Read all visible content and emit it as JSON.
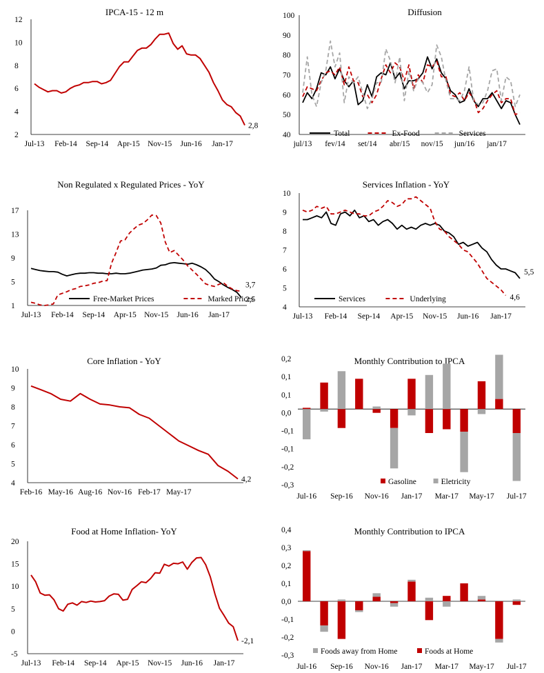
{
  "colors": {
    "red": "#C00000",
    "black": "#000000",
    "gray": "#A6A6A6"
  },
  "charts": [
    {
      "type": "line",
      "title": "IPCA-15 - 12 m",
      "ylim": [
        2,
        12
      ],
      "yticks": [
        "2",
        "4",
        "6",
        "8",
        "10",
        "12"
      ],
      "xticks": [
        "Jul-13",
        "Feb-14",
        "Sep-14",
        "Apr-15",
        "Nov-15",
        "Jun-16",
        "Jan-17"
      ],
      "end_label": "2,8",
      "series": [
        {
          "color": "#C00000",
          "dash": false,
          "values": [
            6.4,
            6.1,
            5.9,
            5.7,
            5.8,
            5.8,
            5.6,
            5.7,
            6.0,
            6.2,
            6.3,
            6.5,
            6.5,
            6.6,
            6.6,
            6.4,
            6.5,
            6.7,
            7.3,
            7.9,
            8.3,
            8.3,
            8.8,
            9.3,
            9.5,
            9.5,
            9.8,
            10.3,
            10.7,
            10.7,
            10.8,
            9.9,
            9.4,
            9.7,
            9.0,
            8.9,
            8.9,
            8.6,
            8.0,
            7.4,
            6.5,
            5.8,
            5.0,
            4.6,
            4.4,
            3.9,
            3.6,
            2.8
          ]
        }
      ]
    },
    {
      "type": "line",
      "title": "Diffusion",
      "ylim": [
        40,
        100
      ],
      "yticks": [
        "40",
        "50",
        "60",
        "70",
        "80",
        "90",
        "100"
      ],
      "xticks": [
        "jul/13",
        "fev/14",
        "set/14",
        "abr/15",
        "nov/15",
        "jun/16",
        "jan/17"
      ],
      "legend": [
        "Total",
        "Ex-Food",
        "Services"
      ],
      "series": [
        {
          "name": "Total",
          "color": "#000000",
          "dash": false,
          "values": [
            56,
            61,
            58,
            63,
            71,
            70,
            74,
            68,
            73,
            67,
            64,
            67,
            55,
            57,
            65,
            59,
            69,
            71,
            70,
            76,
            68,
            71,
            63,
            67,
            67,
            68,
            71,
            79,
            73,
            78,
            71,
            68,
            62,
            60,
            56,
            57,
            63,
            57,
            54,
            58,
            58,
            61,
            57,
            53,
            57,
            56,
            50,
            45
          ]
        },
        {
          "name": "Ex-Food",
          "color": "#C00000",
          "dash": true,
          "values": [
            59,
            64,
            63,
            62,
            67,
            71,
            72,
            70,
            74,
            65,
            74,
            67,
            66,
            59,
            60,
            56,
            60,
            68,
            75,
            71,
            76,
            74,
            67,
            75,
            63,
            70,
            66,
            75,
            74,
            77,
            69,
            69,
            60,
            59,
            61,
            57,
            61,
            58,
            51,
            53,
            57,
            60,
            62,
            56,
            58,
            58,
            50,
            51
          ]
        },
        {
          "name": "Services",
          "color": "#A6A6A6",
          "dash": true,
          "values": [
            61,
            79,
            60,
            54,
            66,
            72,
            87,
            74,
            81,
            56,
            69,
            66,
            69,
            61,
            53,
            58,
            66,
            66,
            83,
            77,
            66,
            79,
            57,
            72,
            62,
            68,
            66,
            61,
            65,
            85,
            79,
            67,
            58,
            58,
            57,
            62,
            74,
            57,
            55,
            56,
            62,
            72,
            73,
            57,
            69,
            67,
            54,
            60
          ]
        }
      ]
    },
    {
      "type": "line",
      "title": "Non Regulated x Regulated Prices - YoY",
      "ylim": [
        1,
        19
      ],
      "yticks": [
        "1",
        "5",
        "9",
        "13",
        "17"
      ],
      "xticks": [
        "Jul-13",
        "Feb-14",
        "Sep-14",
        "Apr-15",
        "Nov-15",
        "Jun-16",
        "Jan-17"
      ],
      "legend": [
        "Free-Market Prices",
        "Marked Prices"
      ],
      "end_labels": [
        "3,7",
        "2,5"
      ],
      "series": [
        {
          "name": "Free-Market Prices",
          "color": "#000000",
          "dash": false,
          "values": [
            8.0,
            7.8,
            7.6,
            7.5,
            7.4,
            7.4,
            7.3,
            6.9,
            6.6,
            6.8,
            7.0,
            7.1,
            7.1,
            7.2,
            7.2,
            7.1,
            7.1,
            7.0,
            7.0,
            7.1,
            7.0,
            7.0,
            7.1,
            7.3,
            7.5,
            7.7,
            7.8,
            7.9,
            8.1,
            8.6,
            8.7,
            9.0,
            9.1,
            9.0,
            8.9,
            8.8,
            9.0,
            8.7,
            8.3,
            7.8,
            7.0,
            6.0,
            5.5,
            4.9,
            4.4,
            4.0,
            3.5,
            2.5
          ]
        },
        {
          "name": "Marked Prices",
          "color": "#C00000",
          "dash": true,
          "values": [
            1.6,
            1.4,
            1.1,
            1.0,
            1.1,
            1.3,
            3.0,
            3.3,
            3.6,
            4.0,
            4.2,
            4.6,
            4.7,
            4.9,
            5.2,
            5.3,
            5.6,
            5.7,
            9.0,
            11.0,
            13.2,
            13.4,
            14.7,
            15.5,
            16.2,
            16.5,
            17.2,
            18.1,
            18.0,
            16.6,
            13.0,
            11.0,
            11.4,
            10.5,
            9.6,
            8.5,
            7.7,
            6.9,
            6.0,
            5.1,
            4.8,
            4.6,
            5.0,
            5.3,
            4.6,
            4.1,
            3.8,
            3.7
          ]
        }
      ]
    },
    {
      "type": "line",
      "title": "Services Inflation - YoY",
      "ylim": [
        4,
        10
      ],
      "yticks": [
        "4",
        "5",
        "6",
        "7",
        "8",
        "9",
        "10"
      ],
      "xticks": [
        "Jul-13",
        "Feb-14",
        "Sep-14",
        "Apr-15",
        "Nov-15",
        "Jun-16",
        "Jan-17"
      ],
      "legend": [
        "Services",
        "Underlying"
      ],
      "end_labels": [
        "5,5",
        "4,6"
      ],
      "series": [
        {
          "name": "Services",
          "color": "#000000",
          "dash": false,
          "values": [
            8.6,
            8.6,
            8.7,
            8.8,
            8.7,
            9.0,
            8.4,
            8.3,
            8.9,
            9.0,
            8.8,
            9.1,
            8.7,
            8.8,
            8.5,
            8.6,
            8.3,
            8.5,
            8.6,
            8.4,
            8.1,
            8.3,
            8.1,
            8.2,
            8.1,
            8.3,
            8.4,
            8.3,
            8.4,
            8.3,
            8.0,
            7.9,
            7.7,
            7.3,
            7.4,
            7.2,
            7.3,
            7.4,
            7.1,
            6.9,
            6.5,
            6.2,
            6.0,
            6.0,
            5.9,
            5.8,
            5.5
          ]
        },
        {
          "name": "Underlying",
          "color": "#C00000",
          "dash": true,
          "values": [
            9.1,
            9.0,
            9.1,
            9.3,
            9.2,
            9.3,
            8.9,
            8.9,
            9.0,
            9.1,
            9.0,
            8.9,
            8.9,
            8.8,
            8.8,
            9.0,
            9.1,
            9.3,
            9.6,
            9.5,
            9.3,
            9.4,
            9.7,
            9.7,
            9.8,
            9.6,
            9.4,
            9.2,
            8.5,
            8.1,
            8.0,
            7.7,
            7.5,
            7.3,
            7.0,
            6.9,
            6.6,
            6.3,
            5.9,
            5.5,
            5.3,
            5.1,
            4.9,
            4.6
          ]
        }
      ]
    },
    {
      "type": "line",
      "title": "Core Inflation - YoY",
      "ylim": [
        4,
        10
      ],
      "yticks": [
        "4",
        "5",
        "6",
        "7",
        "8",
        "9",
        "10"
      ],
      "xticks": [
        "Feb-16",
        "May-16",
        "Aug-16",
        "Nov-16",
        "Feb-17",
        "May-17"
      ],
      "end_label": "4,2",
      "series": [
        {
          "color": "#C00000",
          "dash": false,
          "values": [
            9.1,
            8.9,
            8.7,
            8.4,
            8.3,
            8.7,
            8.4,
            8.15,
            8.1,
            8.0,
            7.95,
            7.6,
            7.4,
            7.0,
            6.6,
            6.2,
            5.95,
            5.7,
            5.5,
            4.9,
            4.6,
            4.2
          ]
        }
      ]
    },
    {
      "type": "bar",
      "title": "Monthly Contribution to IPCA",
      "ylim": [
        -0.3,
        0.2
      ],
      "yticks": [
        "-0,3",
        "-0,2",
        "-0,1",
        "-0,1",
        "0,0",
        "0,1",
        "0,1",
        "0,2"
      ],
      "categories": [
        "Jul-16",
        "Aug-16",
        "Sep-16",
        "Oct-16",
        "Nov-16",
        "Dec-16",
        "Jan-17",
        "Feb-17",
        "Mar-17",
        "Apr-17",
        "May-17",
        "Jun-17",
        "Jul-17"
      ],
      "xticks": [
        "Jul-16",
        "Sep-16",
        "Nov-16",
        "Jan-17",
        "Mar-17",
        "May-17",
        "Jul-17"
      ],
      "legend": [
        "Gasoline",
        "Eletricity"
      ],
      "series": [
        {
          "name": "Gasoline",
          "color": "#C00000",
          "values": [
            0.005,
            0.105,
            -0.075,
            0.12,
            -0.015,
            -0.075,
            0.12,
            -0.095,
            -0.08,
            -0.09,
            0.11,
            0.04,
            -0.095
          ]
        },
        {
          "name": "Eletricity",
          "color": "#A6A6A6",
          "values": [
            -0.12,
            -0.01,
            0.15,
            0.0,
            0.01,
            -0.16,
            -0.025,
            0.135,
            0.18,
            -0.16,
            -0.02,
            0.175,
            -0.19
          ]
        }
      ]
    },
    {
      "type": "line",
      "title": "Food at Home Inflation- YoY",
      "ylim": [
        -5,
        20
      ],
      "yticks": [
        "-5",
        "0",
        "5",
        "10",
        "15",
        "20"
      ],
      "xticks": [
        "Jul-13",
        "Feb-14",
        "Sep-14",
        "Apr-15",
        "Nov-15",
        "Jun-16",
        "Jan-17"
      ],
      "end_label": "-2,1",
      "series": [
        {
          "color": "#C00000",
          "dash": false,
          "values": [
            12.5,
            11.0,
            8.5,
            8.0,
            8.1,
            7.0,
            5.0,
            4.5,
            6.0,
            6.3,
            5.8,
            6.6,
            6.4,
            6.7,
            6.5,
            6.6,
            6.8,
            7.8,
            8.3,
            8.2,
            6.9,
            7.1,
            9.3,
            10.1,
            11.0,
            10.8,
            11.7,
            13.0,
            12.9,
            14.9,
            14.5,
            15.1,
            15.0,
            15.4,
            13.8,
            15.3,
            16.3,
            16.4,
            14.8,
            12.1,
            8.3,
            5.1,
            3.5,
            1.8,
            1.0,
            -2.1
          ]
        }
      ]
    },
    {
      "type": "bar",
      "title": "Monthly Contribution to IPCA",
      "ylim": [
        -0.3,
        0.4
      ],
      "yticks": [
        "-0,3",
        "-0,2",
        "-0,1",
        "0,0",
        "0,1",
        "0,2",
        "0,3",
        "0,4"
      ],
      "categories": [
        "Jul-16",
        "Aug-16",
        "Sep-16",
        "Oct-16",
        "Nov-16",
        "Dec-16",
        "Jan-17",
        "Feb-17",
        "Mar-17",
        "Apr-17",
        "May-17",
        "Jun-17",
        "Jul-17"
      ],
      "xticks": [
        "Jul-16",
        "Sep-16",
        "Nov-16",
        "Jan-17",
        "Mar-17",
        "May-17",
        "Jul-17"
      ],
      "legend": [
        "Foods away from Home",
        "Foods at Home"
      ],
      "series": [
        {
          "name": "Foods at Home",
          "color": "#C00000",
          "values": [
            0.28,
            -0.135,
            -0.21,
            -0.05,
            0.025,
            -0.01,
            0.11,
            -0.105,
            0.03,
            0.1,
            0.01,
            -0.21,
            -0.02
          ]
        },
        {
          "name": "Foods away from Home",
          "color": "#A6A6A6",
          "values": [
            0.005,
            -0.035,
            0.01,
            -0.01,
            0.02,
            -0.02,
            0.01,
            0.02,
            -0.03,
            0.0,
            0.02,
            -0.02,
            0.01
          ]
        }
      ]
    }
  ]
}
